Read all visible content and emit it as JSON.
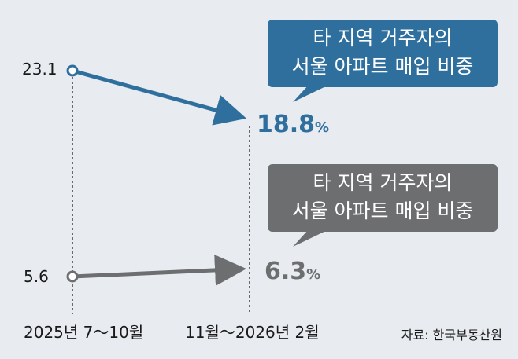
{
  "chart_data": {
    "type": "line",
    "categories": [
      "2025년 7～10월",
      "11월～2026년 2월"
    ],
    "series": [
      {
        "name": "타 지역 거주자의 서울 아파트 매입 비중",
        "values": [
          23.1,
          18.8
        ],
        "start_label": "23.1",
        "end_label": "18.8",
        "unit": "%",
        "color": "#2e6f9e",
        "callout": [
          "타 지역 거주자의",
          "서울 아파트 매입 비중"
        ]
      },
      {
        "name": "타 지역 거주자의 서울 아파트 매입 비중",
        "values": [
          5.6,
          6.3
        ],
        "start_label": "5.6",
        "end_label": "6.3",
        "unit": "%",
        "color": "#6d6e70",
        "callout": [
          "타 지역 거주자의",
          "서울 아파트 매입 비중"
        ]
      }
    ],
    "axis_scale": "broken",
    "grid": false
  },
  "source": "자료: 한국부동산원"
}
